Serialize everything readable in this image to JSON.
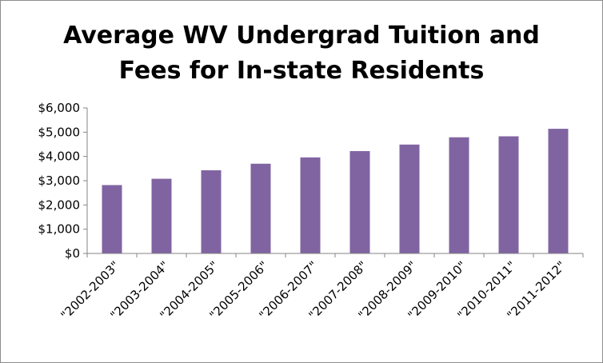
{
  "chart_data": {
    "type": "bar",
    "title_line1": "Average WV Undergrad Tuition and",
    "title_line2": "Fees for In-state Residents",
    "categories": [
      "\"2002-2003\"",
      "\"2003-2004\"",
      "\"2004-2005\"",
      "\"2005-2006\"",
      "\"2006-2007\"",
      "\"2007-2008\"",
      "\"2008-2009\"",
      "\"2009-2010\"",
      "\"2010-2011\"",
      "\"2011-2012\""
    ],
    "values": [
      2820,
      3080,
      3430,
      3700,
      3960,
      4220,
      4490,
      4790,
      4830,
      5140
    ],
    "ylim": [
      0,
      6000
    ],
    "yticks": [
      0,
      1000,
      2000,
      3000,
      4000,
      5000,
      6000
    ],
    "ytick_labels": [
      "$0",
      "$1,000",
      "$2,000",
      "$3,000",
      "$4,000",
      "$5,000",
      "$6,000"
    ],
    "xlabel": "",
    "ylabel": "",
    "bar_color": "#8064a2",
    "grid": false,
    "legend": "none"
  }
}
